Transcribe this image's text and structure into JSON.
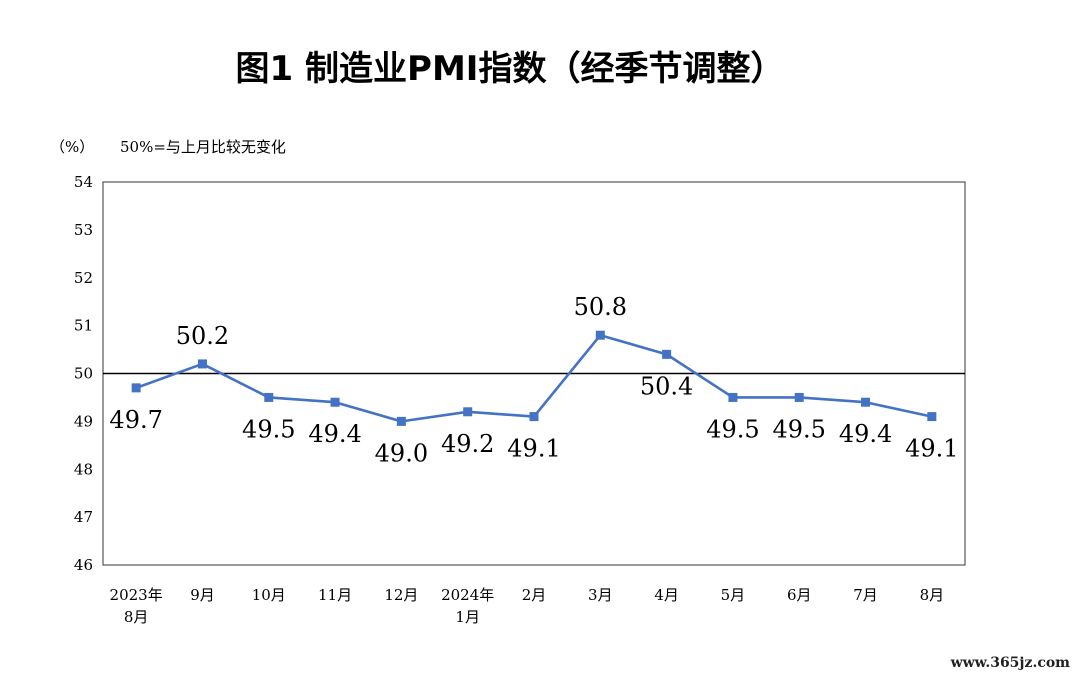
{
  "chart_data": {
    "type": "line",
    "title": "图1  制造业PMI指数（经季节调整）",
    "unit": "（%）",
    "note": "50%=与上月比较无变化",
    "categories": [
      [
        "2023年",
        "8月"
      ],
      [
        "9月"
      ],
      [
        "10月"
      ],
      [
        "11月"
      ],
      [
        "12月"
      ],
      [
        "2024年",
        "1月"
      ],
      [
        "2月"
      ],
      [
        "3月"
      ],
      [
        "4月"
      ],
      [
        "5月"
      ],
      [
        "6月"
      ],
      [
        "7月"
      ],
      [
        "8月"
      ]
    ],
    "values": [
      49.7,
      50.2,
      49.5,
      49.4,
      49.0,
      49.2,
      49.1,
      50.8,
      50.4,
      49.5,
      49.5,
      49.4,
      49.1
    ],
    "data_labels": [
      "49.7",
      "50.2",
      "49.5",
      "49.4",
      "49.0",
      "49.2",
      "49.1",
      "50.8",
      "50.4",
      "49.5",
      "49.5",
      "49.4",
      "49.1"
    ],
    "ylim": [
      46,
      54
    ],
    "yticks": [
      "46",
      "47",
      "48",
      "49",
      "50",
      "51",
      "52",
      "53",
      "54"
    ],
    "reference_value": 50,
    "series_color": "#4472C4",
    "grid": false
  },
  "watermark": "www.365jz.com"
}
